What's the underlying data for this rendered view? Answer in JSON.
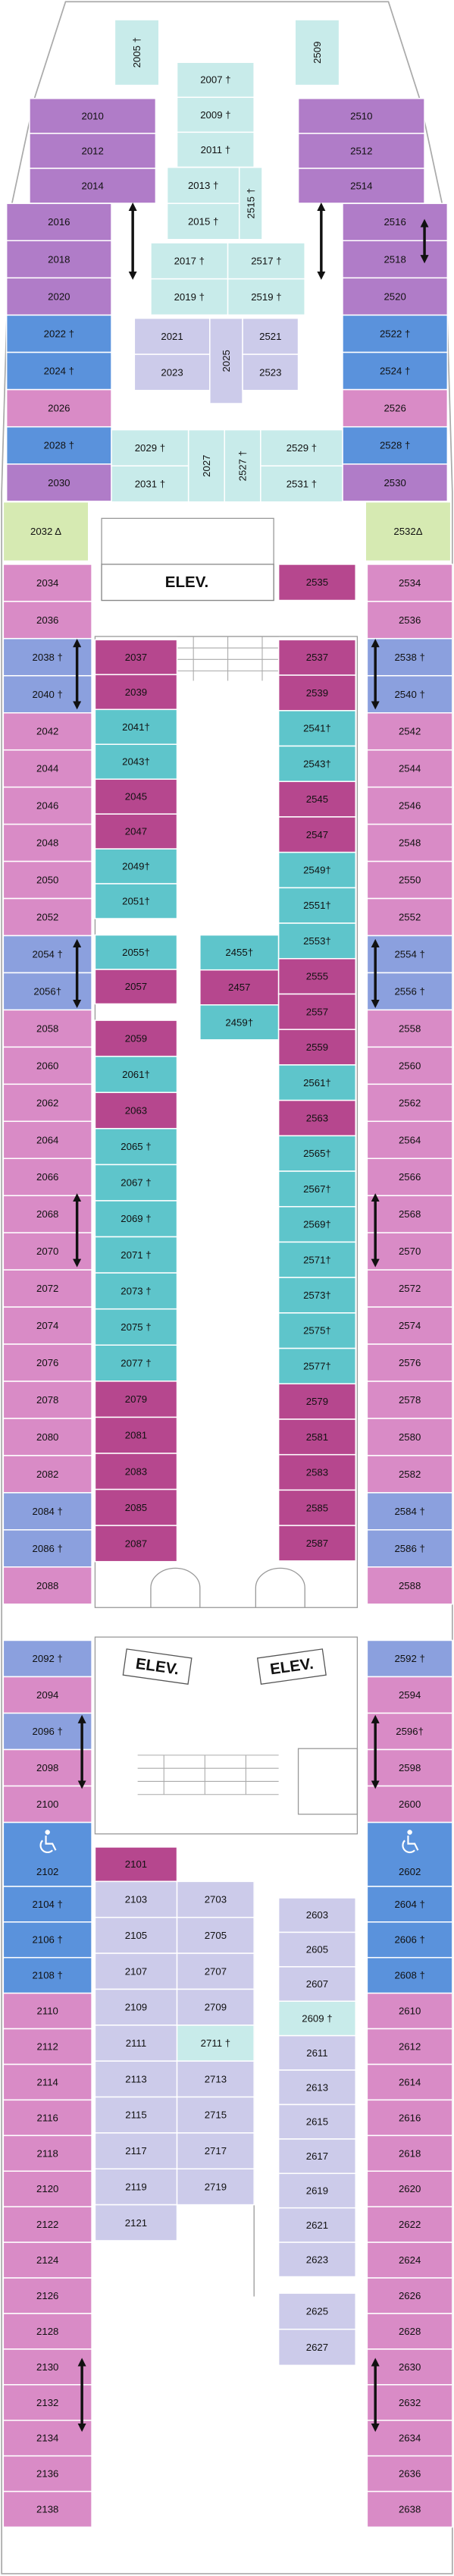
{
  "elevators": [
    "ELEV.",
    "ELEV.",
    "ELEV."
  ],
  "cabin_groups": [
    {
      "labels": [
        "2005 †"
      ],
      "colors": [
        "#c8ebea"
      ]
    },
    {
      "labels": [
        "2509"
      ],
      "colors": [
        "#c8ebea"
      ]
    },
    {
      "labels": [
        "2007 †",
        "2009 †",
        "2011 †"
      ],
      "colors": [
        "#c8ebea",
        "#c8ebea",
        "#c8ebea"
      ]
    },
    {
      "labels": [
        "2013 †",
        "2015 †"
      ],
      "colors": [
        "#c8ebea",
        "#c8ebea"
      ]
    },
    {
      "labels": [
        "2515 †"
      ],
      "colors": [
        "#c8ebea"
      ]
    },
    {
      "labels": [
        "2017 †",
        "2019 †"
      ],
      "colors": [
        "#c8ebea",
        "#c8ebea"
      ]
    },
    {
      "labels": [
        "2517 †",
        "2519 †"
      ],
      "colors": [
        "#c8ebea",
        "#c8ebea"
      ]
    },
    {
      "labels": [
        "2021",
        "2023"
      ],
      "colors": [
        "#cccbea",
        "#cccbea"
      ]
    },
    {
      "labels": [
        "2025"
      ],
      "colors": [
        "#cccbea"
      ]
    },
    {
      "labels": [
        "2521",
        "2523"
      ],
      "colors": [
        "#cccbea",
        "#cccbea"
      ]
    },
    {
      "labels": [
        "2010",
        "2012",
        "2014"
      ],
      "colors": [
        "#b07cc8",
        "#b07cc8",
        "#b07cc8"
      ]
    },
    {
      "labels": [
        "2016",
        "2018",
        "2020",
        "2022 †",
        "2024 †",
        "2026",
        "2028 †",
        "2030"
      ],
      "colors": [
        "#b07cc8",
        "#b07cc8",
        "#b07cc8",
        "#5a92dc",
        "#5a92dc",
        "#d98bc6",
        "#5a92dc",
        "#b07cc8"
      ]
    },
    {
      "labels": [
        "2032 Δ"
      ],
      "colors": [
        "#d6eab2"
      ]
    },
    {
      "labels": [
        "2510",
        "2512",
        "2514"
      ],
      "colors": [
        "#b07cc8",
        "#b07cc8",
        "#b07cc8"
      ]
    },
    {
      "labels": [
        "2516",
        "2518",
        "2520",
        "2522 †",
        "2524 †",
        "2526",
        "2528 †",
        "2530"
      ],
      "colors": [
        "#b07cc8",
        "#b07cc8",
        "#b07cc8",
        "#5a92dc",
        "#5a92dc",
        "#d98bc6",
        "#5a92dc",
        "#b07cc8"
      ]
    },
    {
      "labels": [
        "2532Δ"
      ],
      "colors": [
        "#d6eab2"
      ]
    },
    {
      "labels": [
        "2029 †",
        "2031 †"
      ],
      "colors": [
        "#c8ebea",
        "#c8ebea"
      ]
    },
    {
      "labels": [
        "2027"
      ],
      "colors": [
        "#c8ebea"
      ]
    },
    {
      "labels": [
        "2527 †"
      ],
      "colors": [
        "#c8ebea"
      ]
    },
    {
      "labels": [
        "2529 †",
        "2531 †"
      ],
      "colors": [
        "#c8ebea",
        "#c8ebea"
      ]
    },
    {
      "labels": [
        "2535"
      ],
      "colors": [
        "#b6478e"
      ]
    },
    {
      "labels": [
        "2034",
        "2036",
        "2038 †",
        "2040 †",
        "2042",
        "2044",
        "2046",
        "2048",
        "2050",
        "2052",
        "2054 †",
        "2056†",
        "2058",
        "2060",
        "2062",
        "2064",
        "2066",
        "2068",
        "2070",
        "2072",
        "2074",
        "2076",
        "2078",
        "2080",
        "2082",
        "2084 †",
        "2086 †",
        "2088"
      ],
      "colors": [
        "#d98bc6",
        "#d98bc6",
        "#8ba0de",
        "#8ba0de",
        "#d98bc6",
        "#d98bc6",
        "#d98bc6",
        "#d98bc6",
        "#d98bc6",
        "#d98bc6",
        "#8ba0de",
        "#8ba0de",
        "#d98bc6",
        "#d98bc6",
        "#d98bc6",
        "#d98bc6",
        "#d98bc6",
        "#d98bc6",
        "#d98bc6",
        "#d98bc6",
        "#d98bc6",
        "#d98bc6",
        "#d98bc6",
        "#d98bc6",
        "#d98bc6",
        "#8ba0de",
        "#8ba0de",
        "#d98bc6"
      ]
    },
    {
      "labels": [
        "2534",
        "2536",
        "2538 †",
        "2540 †",
        "2542",
        "2544",
        "2546",
        "2548",
        "2550",
        "2552",
        "2554 †",
        "2556 †",
        "2558",
        "2560",
        "2562",
        "2564",
        "2566",
        "2568",
        "2570",
        "2572",
        "2574",
        "2576",
        "2578",
        "2580",
        "2582",
        "2584 †",
        "2586 †",
        "2588"
      ],
      "colors": [
        "#d98bc6",
        "#d98bc6",
        "#8ba0de",
        "#8ba0de",
        "#d98bc6",
        "#d98bc6",
        "#d98bc6",
        "#d98bc6",
        "#d98bc6",
        "#d98bc6",
        "#8ba0de",
        "#8ba0de",
        "#d98bc6",
        "#d98bc6",
        "#d98bc6",
        "#d98bc6",
        "#d98bc6",
        "#d98bc6",
        "#d98bc6",
        "#d98bc6",
        "#d98bc6",
        "#d98bc6",
        "#d98bc6",
        "#d98bc6",
        "#d98bc6",
        "#8ba0de",
        "#8ba0de",
        "#d98bc6"
      ]
    },
    {
      "labels": [
        "2037",
        "2039",
        "2041†",
        "2043†",
        "2045",
        "2047",
        "2049†",
        "2051†"
      ],
      "colors": [
        "#b6478e",
        "#b6478e",
        "#5ec5cb",
        "#5ec5cb",
        "#b6478e",
        "#b6478e",
        "#5ec5cb",
        "#5ec5cb"
      ]
    },
    {
      "labels": [
        "2055†",
        "2057"
      ],
      "colors": [
        "#5ec5cb",
        "#b6478e"
      ]
    },
    {
      "labels": [
        "2455†",
        "2457",
        "2459†"
      ],
      "colors": [
        "#5ec5cb",
        "#b6478e",
        "#5ec5cb"
      ]
    },
    {
      "labels": [
        "2059",
        "2061†",
        "2063",
        "2065 †",
        "2067 †",
        "2069 †",
        "2071 †",
        "2073 †",
        "2075 †",
        "2077 †",
        "2079",
        "2081",
        "2083",
        "2085",
        "2087"
      ],
      "colors": [
        "#b6478e",
        "#5ec5cb",
        "#b6478e",
        "#5ec5cb",
        "#5ec5cb",
        "#5ec5cb",
        "#5ec5cb",
        "#5ec5cb",
        "#5ec5cb",
        "#5ec5cb",
        "#b6478e",
        "#b6478e",
        "#b6478e",
        "#b6478e",
        "#b6478e"
      ]
    },
    {
      "labels": [
        "2537",
        "2539",
        "2541†",
        "2543†",
        "2545",
        "2547",
        "2549†",
        "2551†",
        "2553†",
        "2555",
        "2557",
        "2559",
        "2561†",
        "2563",
        "2565†",
        "2567†",
        "2569†",
        "2571†",
        "2573†",
        "2575†",
        "2577†",
        "2579",
        "2581",
        "2583",
        "2585",
        "2587"
      ],
      "colors": [
        "#b6478e",
        "#b6478e",
        "#5ec5cb",
        "#5ec5cb",
        "#b6478e",
        "#b6478e",
        "#5ec5cb",
        "#5ec5cb",
        "#5ec5cb",
        "#b6478e",
        "#b6478e",
        "#b6478e",
        "#5ec5cb",
        "#b6478e",
        "#5ec5cb",
        "#5ec5cb",
        "#5ec5cb",
        "#5ec5cb",
        "#5ec5cb",
        "#5ec5cb",
        "#5ec5cb",
        "#b6478e",
        "#b6478e",
        "#b6478e",
        "#b6478e",
        "#b6478e"
      ]
    },
    {
      "labels": [
        "2092 †",
        "2094",
        "2096 †",
        "2098",
        "2100"
      ],
      "colors": [
        "#8ba0de",
        "#d98bc6",
        "#8ba0de",
        "#d98bc6",
        "#d98bc6"
      ]
    },
    {
      "labels": [
        "2102"
      ],
      "colors": [
        "#5a92dc"
      ]
    },
    {
      "labels": [
        "2104 †",
        "2106 †",
        "2108 †",
        "2110",
        "2112",
        "2114",
        "2116",
        "2118",
        "2120",
        "2122",
        "2124",
        "2126",
        "2128",
        "2130",
        "2132",
        "2134",
        "2136",
        "2138"
      ],
      "colors": [
        "#5a92dc",
        "#5a92dc",
        "#5a92dc",
        "#d98bc6",
        "#d98bc6",
        "#d98bc6",
        "#d98bc6",
        "#d98bc6",
        "#d98bc6",
        "#d98bc6",
        "#d98bc6",
        "#d98bc6",
        "#d98bc6",
        "#d98bc6",
        "#d98bc6",
        "#d98bc6",
        "#d98bc6",
        "#d98bc6"
      ]
    },
    {
      "labels": [
        "2592 †",
        "2594",
        "2596†",
        "2598",
        "2600"
      ],
      "colors": [
        "#8ba0de",
        "#d98bc6",
        "#d98bc6",
        "#d98bc6",
        "#d98bc6"
      ]
    },
    {
      "labels": [
        "2602"
      ],
      "colors": [
        "#5a92dc"
      ]
    },
    {
      "labels": [
        "2604 †",
        "2606 †",
        "2608 †",
        "2610",
        "2612",
        "2614",
        "2616",
        "2618",
        "2620",
        "2622",
        "2624",
        "2626",
        "2628",
        "2630",
        "2632",
        "2634",
        "2636",
        "2638"
      ],
      "colors": [
        "#5a92dc",
        "#5a92dc",
        "#5a92dc",
        "#d98bc6",
        "#d98bc6",
        "#d98bc6",
        "#d98bc6",
        "#d98bc6",
        "#d98bc6",
        "#d98bc6",
        "#d98bc6",
        "#d98bc6",
        "#d98bc6",
        "#d98bc6",
        "#d98bc6",
        "#d98bc6",
        "#d98bc6",
        "#d98bc6"
      ]
    },
    {
      "labels": [
        "2101"
      ],
      "colors": [
        "#b6478e"
      ]
    },
    {
      "labels": [
        "2103",
        "2105",
        "2107",
        "2109",
        "2111",
        "2113",
        "2115",
        "2117",
        "2119",
        "2121"
      ],
      "colors": [
        "#cccbea",
        "#cccbea",
        "#cccbea",
        "#cccbea",
        "#cccbea",
        "#cccbea",
        "#cccbea",
        "#cccbea",
        "#cccbea",
        "#cccbea"
      ]
    },
    {
      "labels": [
        "2703",
        "2705",
        "2707",
        "2709",
        "2711 †",
        "2713",
        "2715",
        "2717",
        "2719"
      ],
      "colors": [
        "#cccbea",
        "#cccbea",
        "#cccbea",
        "#cccbea",
        "#c8ebea",
        "#cccbea",
        "#cccbea",
        "#cccbea",
        "#cccbea"
      ]
    },
    {
      "labels": [
        "2603",
        "2605",
        "2607",
        "2609 †",
        "2611",
        "2613",
        "2615",
        "2617",
        "2619",
        "2621",
        "2623"
      ],
      "colors": [
        "#cccbea",
        "#cccbea",
        "#cccbea",
        "#c8ebea",
        "#cccbea",
        "#cccbea",
        "#cccbea",
        "#cccbea",
        "#cccbea",
        "#cccbea",
        "#cccbea"
      ]
    },
    {
      "labels": [
        "2625",
        "2627"
      ],
      "colors": [
        "#cccbea",
        "#cccbea"
      ]
    }
  ]
}
